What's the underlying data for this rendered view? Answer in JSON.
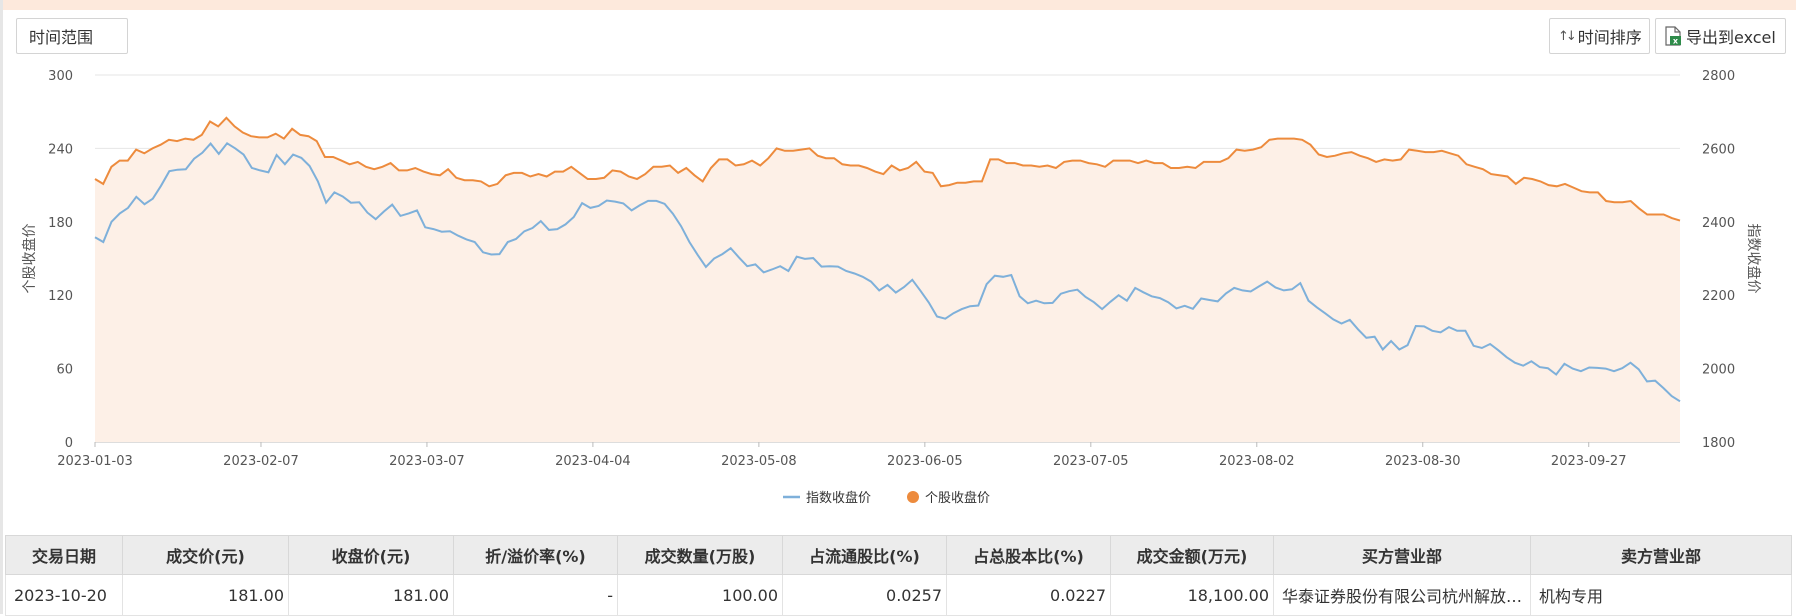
{
  "toolbar": {
    "range_label": "时间范围",
    "sort_label": "时间排序",
    "export_label": "导出到excel"
  },
  "chart_data": {
    "type": "line",
    "x_ticks": [
      "2023-01-03",
      "2023-02-07",
      "2023-03-07",
      "2023-04-04",
      "2023-05-08",
      "2023-06-05",
      "2023-07-05",
      "2023-08-02",
      "2023-08-30",
      "2023-09-27"
    ],
    "y_left": {
      "label": "个股收盘价",
      "range": [
        0,
        300
      ],
      "ticks": [
        0,
        60,
        120,
        180,
        240,
        300
      ]
    },
    "y_right": {
      "label": "指数收盘价",
      "range": [
        1800,
        2800
      ],
      "ticks": [
        1800,
        2000,
        2200,
        2400,
        2600,
        2800
      ]
    },
    "legend_position": "bottom-center",
    "grid": true,
    "series": [
      {
        "name": "指数收盘价",
        "axis": "right",
        "color": "#7eb0da",
        "values": [
          2358,
          2345,
          2400,
          2423,
          2438,
          2468,
          2448,
          2463,
          2498,
          2538,
          2542,
          2543,
          2572,
          2588,
          2613,
          2585,
          2614,
          2600,
          2583,
          2547,
          2540,
          2535,
          2582,
          2557,
          2583,
          2574,
          2552,
          2510,
          2452,
          2480,
          2469,
          2452,
          2453,
          2425,
          2407,
          2428,
          2447,
          2416,
          2423,
          2431,
          2385,
          2380,
          2373,
          2374,
          2362,
          2352,
          2345,
          2317,
          2311,
          2312,
          2345,
          2353,
          2374,
          2383,
          2402,
          2378,
          2380,
          2393,
          2413,
          2451,
          2438,
          2443,
          2458,
          2455,
          2450,
          2431,
          2445,
          2457,
          2457,
          2449,
          2422,
          2388,
          2345,
          2310,
          2277,
          2300,
          2312,
          2328,
          2303,
          2279,
          2284,
          2262,
          2270,
          2279,
          2266,
          2305,
          2299,
          2301,
          2278,
          2279,
          2278,
          2266,
          2259,
          2250,
          2237,
          2213,
          2228,
          2207,
          2222,
          2242,
          2212,
          2180,
          2142,
          2136,
          2151,
          2162,
          2170,
          2172,
          2230,
          2253,
          2250,
          2255,
          2197,
          2178,
          2185,
          2178,
          2179,
          2204,
          2211,
          2215,
          2195,
          2181,
          2162,
          2182,
          2200,
          2185,
          2220,
          2208,
          2197,
          2192,
          2181,
          2164,
          2171,
          2163,
          2191,
          2187,
          2183,
          2205,
          2220,
          2213,
          2210,
          2224,
          2237,
          2221,
          2213,
          2216,
          2233,
          2185,
          2167,
          2151,
          2134,
          2123,
          2133,
          2107,
          2084,
          2087,
          2052,
          2075,
          2052,
          2064,
          2116,
          2115,
          2103,
          2099,
          2113,
          2103,
          2103,
          2062,
          2056,
          2067,
          2050,
          2031,
          2016,
          2008,
          2020,
          2004,
          2001,
          1984,
          2013,
          2000,
          1993,
          2003,
          2002,
          2000,
          1993,
          2001,
          2016,
          1998,
          1965,
          1967,
          1947,
          1925,
          1911
        ]
      },
      {
        "name": "个股收盘价",
        "axis": "left",
        "color": "#ed8b3d",
        "values": [
          215,
          211,
          225,
          230,
          230,
          239,
          236,
          240,
          243,
          247,
          246,
          248,
          247,
          251,
          262,
          258,
          265,
          258,
          253,
          250,
          249,
          249,
          252,
          248,
          256,
          251,
          250,
          246,
          233,
          233,
          230,
          227,
          229,
          225,
          223,
          225,
          228,
          222,
          222,
          224,
          221,
          219,
          218,
          223,
          216,
          214,
          214,
          213,
          209,
          211,
          218,
          220,
          220,
          217,
          219,
          217,
          221,
          221,
          225,
          220,
          215,
          215,
          216,
          222,
          221,
          217,
          215,
          219,
          225,
          225,
          226,
          220,
          224,
          218,
          213,
          224,
          231,
          231,
          226,
          227,
          230,
          226,
          232,
          240,
          238,
          238,
          239,
          240,
          234,
          232,
          232,
          227,
          226,
          226,
          224,
          221,
          219,
          226,
          222,
          224,
          229,
          221,
          220,
          209,
          210,
          212,
          212,
          213,
          213,
          231,
          231,
          228,
          228,
          226,
          226,
          225,
          226,
          224,
          229,
          230,
          230,
          228,
          227,
          225,
          230,
          230,
          230,
          228,
          230,
          228,
          228,
          224,
          224,
          225,
          224,
          229,
          229,
          229,
          232,
          239,
          238,
          239,
          241,
          247,
          248,
          248,
          248,
          247,
          243,
          235,
          233,
          234,
          236,
          237,
          234,
          232,
          229,
          231,
          230,
          231,
          239,
          238,
          237,
          237,
          238,
          236,
          234,
          227,
          225,
          223,
          219,
          218,
          217,
          211,
          216,
          215,
          213,
          210,
          209,
          211,
          208,
          205,
          204,
          204,
          197,
          196,
          196,
          197,
          191,
          186,
          186,
          186,
          183,
          181
        ]
      }
    ]
  },
  "table": {
    "headers": [
      "交易日期",
      "成交价(元)",
      "收盘价(元)",
      "折/溢价率(%)",
      "成交数量(万股)",
      "占流通股比(%)",
      "占总股本比(%)",
      "成交金额(万元)",
      "买方营业部",
      "卖方营业部"
    ],
    "rows": [
      [
        "2023-10-20",
        "181.00",
        "181.00",
        "-",
        "100.00",
        "0.0257",
        "0.0227",
        "18,100.00",
        "华泰证券股份有限公司杭州解放东路证券营业部",
        "机构专用"
      ]
    ]
  }
}
